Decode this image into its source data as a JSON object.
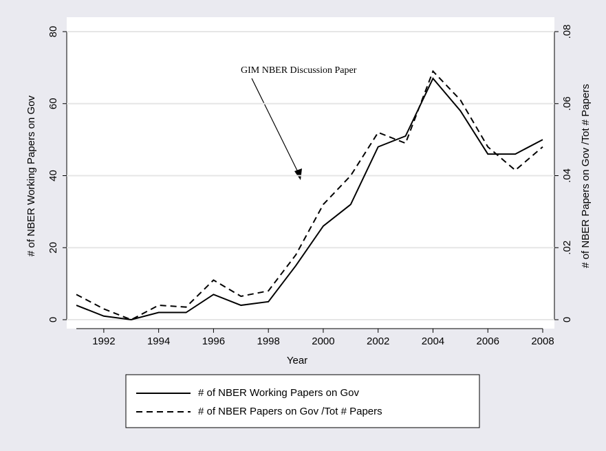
{
  "chart_data": {
    "type": "line",
    "x_label": "Year",
    "y_label": "# of NBER Working Papers on Gov",
    "y2_label": "# of NBER Papers on Gov /Tot # Papers",
    "annotation": "GIM NBER Discussion Paper",
    "x": [
      1991,
      1992,
      1993,
      1994,
      1995,
      1996,
      1997,
      1998,
      1999,
      2000,
      2001,
      2002,
      2003,
      2004,
      2005,
      2006,
      2007,
      2008
    ],
    "series": [
      {
        "name": "# of NBER Working Papers on Gov",
        "color": "#000000",
        "style": "solid",
        "values": [
          4,
          1,
          0,
          2,
          2,
          7,
          4,
          5,
          15,
          26,
          32,
          48,
          51,
          67,
          58,
          46,
          46,
          50
        ]
      },
      {
        "name": "# of NBER Papers on Gov /Tot # Papers",
        "color": "#000000",
        "style": "dashed",
        "axis": "y2",
        "values": [
          0.007,
          0.003,
          0,
          0.004,
          0.0035,
          0.011,
          0.0065,
          0.008,
          0.018,
          0.032,
          0.04,
          0.052,
          0.049,
          0.069,
          0.061,
          0.048,
          0.0415,
          0.048
        ]
      }
    ],
    "xlim": [
      1991,
      2008
    ],
    "xticks": [
      1992,
      1994,
      1996,
      1998,
      2000,
      2002,
      2004,
      2006,
      2008
    ],
    "ylim": [
      0,
      80
    ],
    "yticks": [
      0,
      20,
      40,
      60,
      80
    ],
    "y2lim": [
      0,
      0.08
    ],
    "y2ticks": [
      0,
      {
        "value": 0.02,
        "label": ".02"
      },
      {
        "value": 0.04,
        "label": ".04"
      },
      {
        "value": 0.06,
        "label": ".06"
      },
      {
        "value": 0.08,
        "label": ".08"
      }
    ],
    "grid": true,
    "legend": "bottom"
  }
}
